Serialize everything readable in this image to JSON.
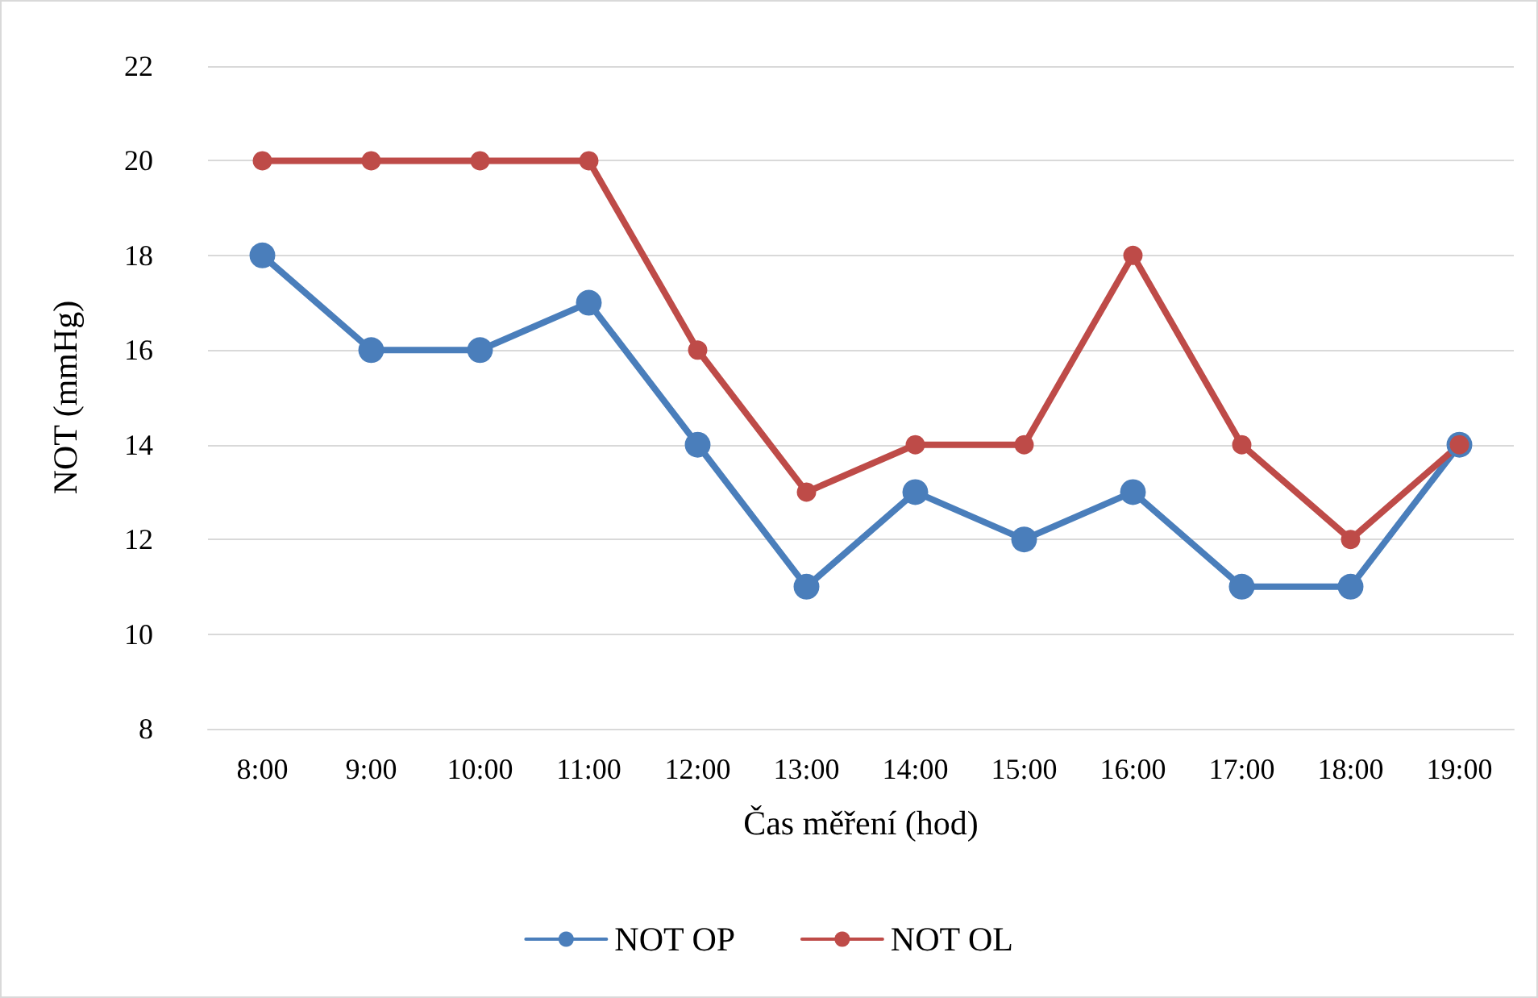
{
  "chart_data": {
    "type": "line",
    "xlabel": "Čas měření (hod)",
    "ylabel": "NOT (mmHg)",
    "categories": [
      "8:00",
      "9:00",
      "10:00",
      "11:00",
      "12:00",
      "13:00",
      "14:00",
      "15:00",
      "16:00",
      "17:00",
      "18:00",
      "19:00"
    ],
    "series": [
      {
        "name": "NOT OP",
        "color": "#4a7ebb",
        "values": [
          18,
          16,
          16,
          17,
          14,
          11,
          13,
          12,
          13,
          11,
          11,
          14
        ]
      },
      {
        "name": "NOT OL",
        "color": "#be4b48",
        "values": [
          20,
          20,
          20,
          20,
          16,
          13,
          14,
          14,
          18,
          14,
          12,
          14
        ]
      }
    ],
    "ylim": [
      8,
      22
    ],
    "yticks": [
      8,
      10,
      12,
      14,
      16,
      18,
      20,
      22
    ],
    "grid": "y",
    "legend": "bottom",
    "marker": "circle",
    "line_style": "solid"
  }
}
